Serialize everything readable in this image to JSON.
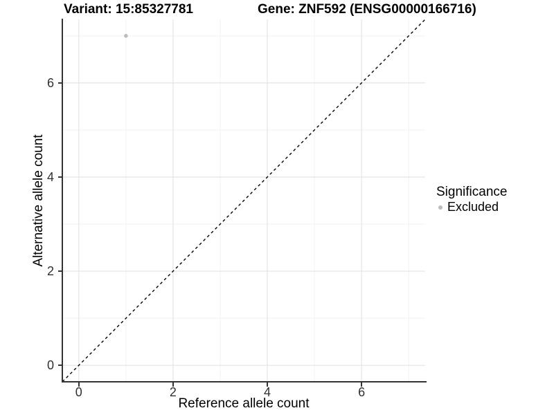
{
  "title": {
    "variant_label": "Variant: 15:85327781",
    "gene_label": "Gene: ZNF592 (ENSG00000166716)"
  },
  "colors": {
    "background": "#ffffff",
    "grid_major": "#e4e4e4",
    "grid_minor": "#f2f2f2",
    "axis_line": "#333333",
    "reference_line": "#000000",
    "excluded_point": "#bdbdbd"
  },
  "chart_data": {
    "type": "scatter",
    "title": "Variant: 15:85327781   Gene: ZNF592 (ENSG00000166716)",
    "xlabel": "Reference allele count",
    "ylabel": "Alternative allele count",
    "xlim": [
      -0.35,
      7.35
    ],
    "ylim": [
      -0.35,
      7.35
    ],
    "x_major_ticks": [
      0,
      2,
      4,
      6
    ],
    "y_major_ticks": [
      0,
      2,
      4,
      6
    ],
    "x_minor_ticks": [
      1,
      3,
      5,
      7
    ],
    "y_minor_ticks": [
      1,
      3,
      5,
      7
    ],
    "grid": true,
    "series": [
      {
        "name": "Excluded",
        "color": "#bdbdbd",
        "point_radius": 2.8,
        "points": [
          {
            "x": 1,
            "y": 7
          }
        ]
      }
    ],
    "reference_line": {
      "type": "identity",
      "style": "dashed",
      "from": [
        -0.35,
        -0.35
      ],
      "to": [
        7.35,
        7.35
      ],
      "color": "#000000"
    },
    "legend": {
      "title": "Significance",
      "position": "right",
      "items": [
        {
          "label": "Excluded",
          "color": "#bdbdbd"
        }
      ]
    }
  }
}
